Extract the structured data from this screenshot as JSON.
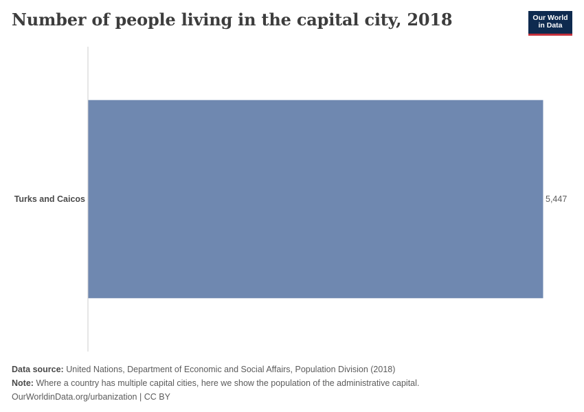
{
  "chart_data": {
    "type": "bar",
    "orientation": "horizontal",
    "title": "Number of people living in the capital city, 2018",
    "categories": [
      "Turks and Caicos"
    ],
    "values": [
      5447
    ],
    "value_labels": [
      "5,447"
    ],
    "xlim": [
      0,
      5447
    ],
    "xlabel": "",
    "ylabel": "",
    "grid": false,
    "bar_color": "#6f88b0"
  },
  "header": {
    "logo_line1": "Our World",
    "logo_line2": "in Data"
  },
  "footer": {
    "source_label": "Data source:",
    "source_text": "United Nations, Department of Economic and Social Affairs, Population Division (2018)",
    "note_label": "Note:",
    "note_text": "Where a country has multiple capital cities, here we show the population of the administrative capital.",
    "link_text": "OurWorldinData.org/urbanization",
    "license_text": "| CC BY"
  }
}
